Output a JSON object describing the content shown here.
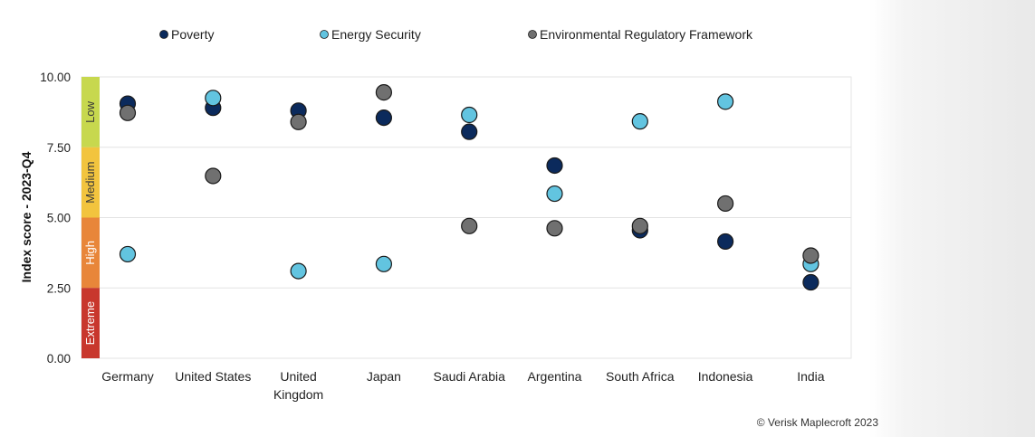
{
  "chart_data": {
    "type": "scatter",
    "title": "",
    "xlabel": "",
    "ylabel": "Index score - 2023-Q4",
    "ylim": [
      0,
      10
    ],
    "y_ticks": [
      "0.00",
      "2.50",
      "5.00",
      "7.50",
      "10.00"
    ],
    "grid": "horizontal",
    "legend_position": "top",
    "categories": [
      [
        "Germany"
      ],
      [
        "United States"
      ],
      [
        "United",
        "Kingdom"
      ],
      [
        "Japan"
      ],
      [
        "Saudi Arabia"
      ],
      [
        "Argentina"
      ],
      [
        "South Africa"
      ],
      [
        "Indonesia"
      ],
      [
        "India"
      ]
    ],
    "series": [
      {
        "name": "Poverty",
        "color": "#0b2a5c",
        "values": [
          9.05,
          8.9,
          8.8,
          8.55,
          8.05,
          6.85,
          4.55,
          4.15,
          2.7
        ]
      },
      {
        "name": "Energy Security",
        "color": "#62c4e0",
        "values": [
          3.7,
          9.25,
          3.1,
          3.35,
          8.65,
          5.85,
          8.42,
          9.12,
          3.35
        ]
      },
      {
        "name": "Environmental Regulatory Framework",
        "color": "#707070",
        "values": [
          8.72,
          6.48,
          8.4,
          9.45,
          4.7,
          4.62,
          4.7,
          5.5,
          3.65
        ]
      }
    ],
    "risk_bands": [
      {
        "label": "Low",
        "from": 7.5,
        "to": 10,
        "color": "#c7d84e",
        "text_dark": true
      },
      {
        "label": "Medium",
        "from": 5,
        "to": 7.5,
        "color": "#f2c43e",
        "text_dark": true
      },
      {
        "label": "High",
        "from": 2.5,
        "to": 5,
        "color": "#e8863a",
        "text_dark": false
      },
      {
        "label": "Extreme",
        "from": 0,
        "to": 2.5,
        "color": "#c8372d",
        "text_dark": false
      }
    ],
    "credit": "© Verisk Maplecroft 2023"
  }
}
